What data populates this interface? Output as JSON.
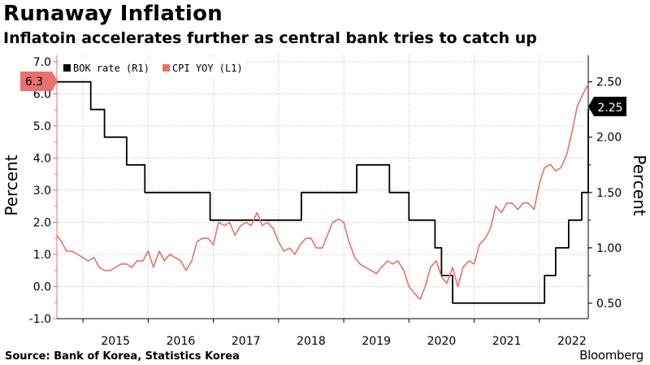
{
  "header": {
    "title": "Runaway Inflation",
    "subtitle": "Inflatoin accelerates further as central bank tries to catch up"
  },
  "footer": {
    "source": "Source: Bank of Korea, Statistics Korea",
    "brand": "Bloomberg"
  },
  "colors": {
    "bok": "#000000",
    "cpi": "#e8716b",
    "grid": "#bdbdbd",
    "axis_left": "#e8716b"
  },
  "chart_data": {
    "type": "line",
    "x_tick_labels": [
      "2015",
      "2016",
      "2017",
      "2018",
      "2019",
      "2020",
      "2021",
      "2022"
    ],
    "x_tick_values": [
      2015,
      2016,
      2017,
      2018,
      2019,
      2020,
      2021,
      2022
    ],
    "x_range": [
      2014.1,
      2022.25
    ],
    "left_axis": {
      "label": "Percent",
      "range": [
        -1.0,
        7.2
      ],
      "ticks": [
        "7.0",
        "6.0",
        "5.0",
        "4.0",
        "3.0",
        "2.0",
        "1.0",
        "0.0",
        "-1.0"
      ],
      "tick_values": [
        7.0,
        6.0,
        5.0,
        4.0,
        3.0,
        2.0,
        1.0,
        0.0,
        -1.0
      ]
    },
    "right_axis": {
      "label": "Percent",
      "range": [
        0.36,
        2.74
      ],
      "ticks": [
        "2.50",
        "2.00",
        "1.50",
        "1.00",
        "0.50"
      ],
      "tick_values": [
        2.5,
        2.0,
        1.5,
        1.0,
        0.5
      ]
    },
    "legend": [
      "BOK rate (R1)",
      "CPI YOY (L1)"
    ],
    "legend_position": "top-left",
    "grid": true,
    "callouts": {
      "cpi_last": "6.3",
      "bok_last": "2.25"
    },
    "series": [
      {
        "name": "BOK rate (R1)",
        "axis": "right",
        "color": "#000000",
        "step": true,
        "x": [
          2014.1,
          2014.25,
          2014.62,
          2014.83,
          2015.0,
          2015.17,
          2015.45,
          2016.45,
          2016.7,
          2016.9,
          2017.3,
          2017.85,
          2018.1,
          2018.7,
          2018.85,
          2019.2,
          2019.4,
          2019.5,
          2019.78,
          2019.9,
          2020.0,
          2020.17,
          2020.4,
          2021.1,
          2021.58,
          2021.68,
          2021.75,
          2021.85,
          2021.95,
          2022.05,
          2022.15,
          2022.25
        ],
        "y": [
          2.5,
          2.5,
          2.25,
          2.0,
          2.0,
          1.75,
          1.5,
          1.25,
          1.25,
          1.25,
          1.25,
          1.5,
          1.5,
          1.75,
          1.75,
          1.5,
          1.5,
          1.25,
          1.25,
          1.0,
          0.75,
          0.5,
          0.5,
          0.5,
          0.75,
          0.75,
          1.0,
          1.0,
          1.25,
          1.25,
          1.5,
          2.25
        ]
      },
      {
        "name": "CPI YOY (L1)",
        "axis": "left",
        "color": "#e8716b",
        "x": [
          2014.1,
          2014.17,
          2014.25,
          2014.33,
          2014.42,
          2014.5,
          2014.58,
          2014.67,
          2014.75,
          2014.83,
          2014.92,
          2015.0,
          2015.08,
          2015.17,
          2015.25,
          2015.33,
          2015.42,
          2015.5,
          2015.58,
          2015.67,
          2015.75,
          2015.83,
          2015.92,
          2016.0,
          2016.08,
          2016.17,
          2016.25,
          2016.33,
          2016.42,
          2016.5,
          2016.58,
          2016.67,
          2016.75,
          2016.83,
          2016.92,
          2017.0,
          2017.08,
          2017.17,
          2017.25,
          2017.33,
          2017.42,
          2017.5,
          2017.58,
          2017.67,
          2017.75,
          2017.83,
          2017.92,
          2018.0,
          2018.08,
          2018.17,
          2018.25,
          2018.33,
          2018.42,
          2018.5,
          2018.58,
          2018.67,
          2018.75,
          2018.83,
          2018.92,
          2019.0,
          2019.08,
          2019.17,
          2019.25,
          2019.33,
          2019.42,
          2019.5,
          2019.58,
          2019.67,
          2019.75,
          2019.83,
          2019.92,
          2020.0,
          2020.08,
          2020.17,
          2020.25,
          2020.33,
          2020.42,
          2020.5,
          2020.58,
          2020.67,
          2020.75,
          2020.83,
          2020.92,
          2021.0,
          2021.08,
          2021.17,
          2021.25,
          2021.33,
          2021.42,
          2021.5,
          2021.58,
          2021.67,
          2021.75,
          2021.83,
          2021.92,
          2022.0,
          2022.08,
          2022.17,
          2022.25
        ],
        "y": [
          1.6,
          1.4,
          1.1,
          1.1,
          1.0,
          0.9,
          0.8,
          0.9,
          0.6,
          0.5,
          0.5,
          0.6,
          0.7,
          0.7,
          0.6,
          0.8,
          0.8,
          1.1,
          0.6,
          1.1,
          0.8,
          1.0,
          0.9,
          0.8,
          0.5,
          0.8,
          1.4,
          1.5,
          1.5,
          1.3,
          2.0,
          1.9,
          2.0,
          1.6,
          1.9,
          2.0,
          1.9,
          2.3,
          1.9,
          2.0,
          1.8,
          1.4,
          1.1,
          1.2,
          1.0,
          1.3,
          1.5,
          1.5,
          1.2,
          1.2,
          1.6,
          2.0,
          2.1,
          2.0,
          1.4,
          0.9,
          0.7,
          0.6,
          0.5,
          0.4,
          0.6,
          0.8,
          0.7,
          0.8,
          0.5,
          0.0,
          -0.2,
          -0.4,
          0.0,
          0.6,
          0.8,
          0.3,
          0.1,
          0.6,
          0.0,
          0.6,
          0.8,
          0.7,
          1.3,
          1.5,
          1.8,
          2.5,
          2.3,
          2.6,
          2.6,
          2.4,
          2.6,
          2.6,
          2.4,
          3.2,
          3.7,
          3.8,
          3.6,
          3.7,
          4.1,
          4.8,
          5.6,
          6.0,
          6.3
        ]
      }
    ]
  }
}
